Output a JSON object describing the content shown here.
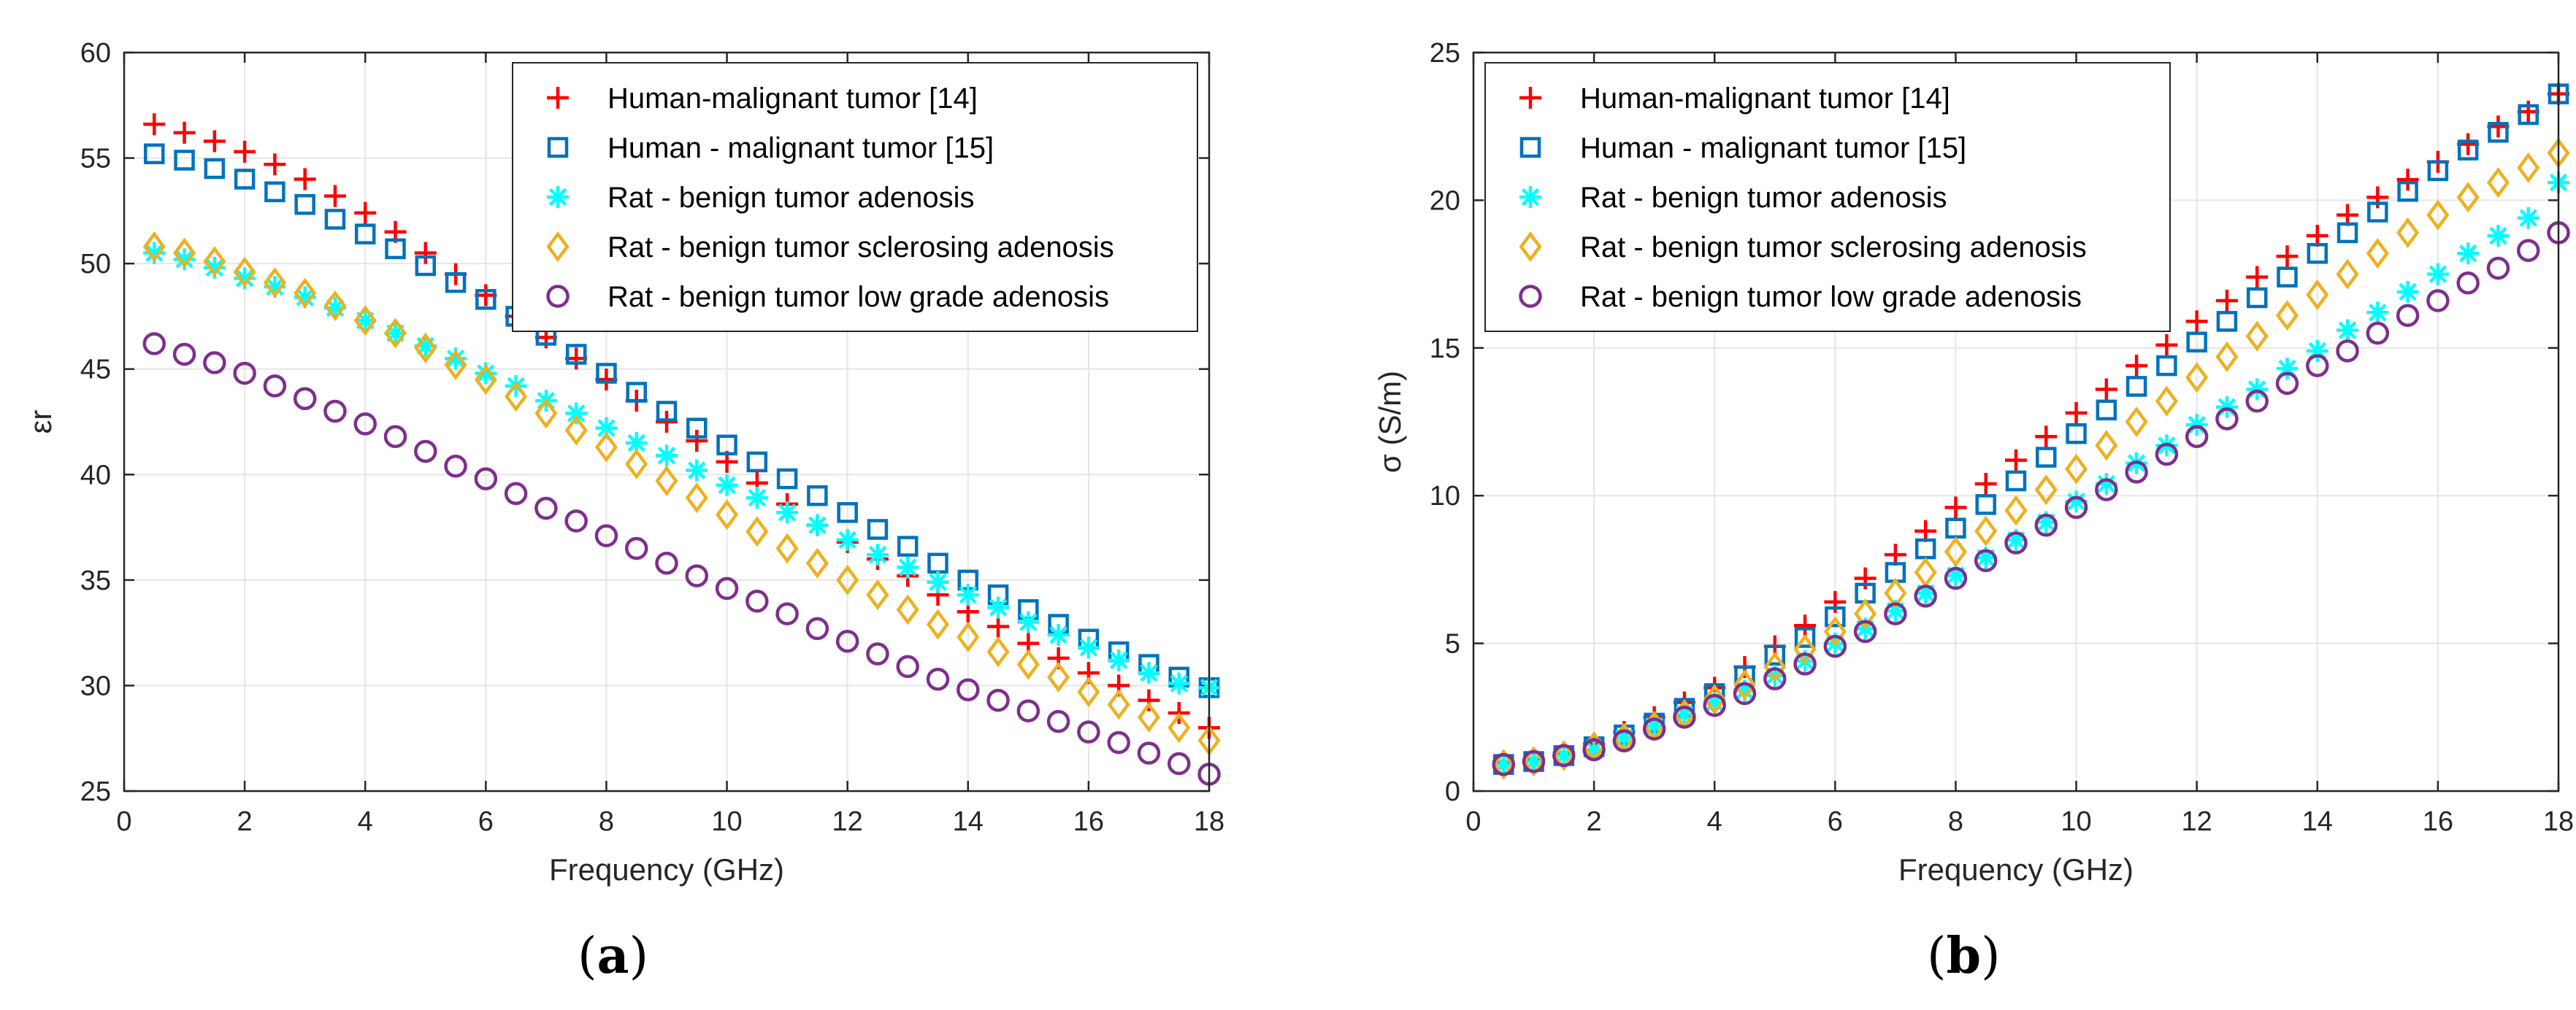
{
  "figure": {
    "panels": [
      {
        "id": "a",
        "caption_letter": "a"
      },
      {
        "id": "b",
        "caption_letter": "b"
      }
    ]
  },
  "colors": {
    "human14": "#ff0000",
    "human15": "#0072bd",
    "rat_adenosis": "#00ffff",
    "rat_sclerosing": "#edb120",
    "rat_lowgrade": "#7e2f8e"
  },
  "chart_data": [
    {
      "type": "scatter",
      "panel": "a",
      "xlabel": "Frequency (GHz)",
      "ylabel": "εr",
      "xlim": [
        0,
        18
      ],
      "ylim": [
        25,
        60
      ],
      "xticks": [
        0,
        2,
        4,
        6,
        8,
        10,
        12,
        14,
        16,
        18
      ],
      "yticks": [
        25,
        30,
        35,
        40,
        45,
        50,
        55,
        60
      ],
      "grid": true,
      "legend_position": "top-right",
      "x": [
        0.5,
        1,
        1.5,
        2,
        2.5,
        3,
        3.5,
        4,
        4.5,
        5,
        5.5,
        6,
        6.5,
        7,
        7.5,
        8,
        8.5,
        9,
        9.5,
        10,
        10.5,
        11,
        11.5,
        12,
        12.5,
        13,
        13.5,
        14,
        14.5,
        15,
        15.5,
        16,
        16.5,
        17,
        17.5,
        18
      ],
      "series": [
        {
          "name": "Human-malignant tumor [14]",
          "marker": "plus",
          "color_key": "human14",
          "values": [
            56.6,
            56.2,
            55.8,
            55.3,
            54.7,
            54.0,
            53.2,
            52.4,
            51.5,
            50.5,
            49.5,
            48.5,
            47.5,
            46.5,
            45.5,
            44.5,
            43.5,
            42.5,
            41.6,
            40.6,
            39.6,
            38.6,
            37.6,
            36.8,
            36.0,
            35.2,
            34.3,
            33.5,
            32.8,
            32.0,
            31.3,
            30.6,
            30.0,
            29.3,
            28.7,
            28.0
          ]
        },
        {
          "name": "Human - malignant tumor [15]",
          "marker": "square",
          "color_key": "human15",
          "values": [
            55.2,
            54.9,
            54.5,
            54.0,
            53.4,
            52.8,
            52.1,
            51.4,
            50.7,
            49.9,
            49.1,
            48.3,
            47.5,
            46.6,
            45.7,
            44.8,
            43.9,
            43.0,
            42.2,
            41.4,
            40.6,
            39.8,
            39.0,
            38.2,
            37.4,
            36.6,
            35.8,
            35.0,
            34.3,
            33.6,
            32.9,
            32.2,
            31.6,
            31.0,
            30.4,
            29.9
          ]
        },
        {
          "name": "Rat - benign tumor adenosis",
          "marker": "asterisk",
          "color_key": "rat_adenosis",
          "values": [
            50.5,
            50.2,
            49.8,
            49.3,
            48.9,
            48.4,
            47.9,
            47.3,
            46.7,
            46.1,
            45.5,
            44.8,
            44.2,
            43.5,
            42.9,
            42.2,
            41.5,
            40.9,
            40.2,
            39.5,
            38.9,
            38.2,
            37.6,
            36.9,
            36.2,
            35.6,
            34.9,
            34.3,
            33.7,
            33.0,
            32.4,
            31.8,
            31.2,
            30.6,
            30.1,
            29.9
          ]
        },
        {
          "name": "Rat - benign tumor sclerosing adenosis",
          "marker": "diamond",
          "color_key": "rat_sclerosing",
          "values": [
            50.8,
            50.5,
            50.1,
            49.6,
            49.1,
            48.6,
            48.0,
            47.3,
            46.7,
            46.0,
            45.2,
            44.5,
            43.7,
            42.9,
            42.1,
            41.3,
            40.5,
            39.7,
            38.9,
            38.1,
            37.3,
            36.5,
            35.8,
            35.0,
            34.3,
            33.6,
            32.9,
            32.3,
            31.6,
            31.0,
            30.4,
            29.7,
            29.1,
            28.5,
            28.0,
            27.4
          ]
        },
        {
          "name": "Rat - benign tumor low grade adenosis",
          "marker": "circle",
          "color_key": "rat_lowgrade",
          "values": [
            46.2,
            45.7,
            45.3,
            44.8,
            44.2,
            43.6,
            43.0,
            42.4,
            41.8,
            41.1,
            40.4,
            39.8,
            39.1,
            38.4,
            37.8,
            37.1,
            36.5,
            35.8,
            35.2,
            34.6,
            34.0,
            33.4,
            32.7,
            32.1,
            31.5,
            30.9,
            30.3,
            29.8,
            29.3,
            28.8,
            28.3,
            27.8,
            27.3,
            26.8,
            26.3,
            25.8
          ]
        }
      ]
    },
    {
      "type": "scatter",
      "panel": "b",
      "xlabel": "Frequency (GHz)",
      "ylabel": "σ (S/m)",
      "xlim": [
        0,
        18
      ],
      "ylim": [
        0,
        25
      ],
      "xticks": [
        0,
        2,
        4,
        6,
        8,
        10,
        12,
        14,
        16,
        18
      ],
      "yticks": [
        0,
        5,
        10,
        15,
        20,
        25
      ],
      "grid": true,
      "legend_position": "top-left",
      "x": [
        0.5,
        1,
        1.5,
        2,
        2.5,
        3,
        3.5,
        4,
        4.5,
        5,
        5.5,
        6,
        6.5,
        7,
        7.5,
        8,
        8.5,
        9,
        9.5,
        10,
        10.5,
        11,
        11.5,
        12,
        12.5,
        13,
        13.5,
        14,
        14.5,
        15,
        15.5,
        16,
        16.5,
        17,
        17.5,
        18
      ],
      "series": [
        {
          "name": "Human-malignant tumor [14]",
          "marker": "plus",
          "color_key": "human14",
          "values": [
            1.0,
            1.1,
            1.3,
            1.6,
            2.0,
            2.5,
            3.0,
            3.5,
            4.2,
            4.9,
            5.6,
            6.4,
            7.2,
            8.0,
            8.8,
            9.6,
            10.4,
            11.2,
            12.0,
            12.8,
            13.6,
            14.4,
            15.1,
            15.9,
            16.6,
            17.4,
            18.1,
            18.8,
            19.5,
            20.1,
            20.7,
            21.3,
            21.9,
            22.5,
            23.0,
            23.6
          ]
        },
        {
          "name": "Human - malignant tumor [15]",
          "marker": "square",
          "color_key": "human15",
          "values": [
            0.9,
            1.0,
            1.2,
            1.5,
            1.9,
            2.3,
            2.8,
            3.3,
            3.9,
            4.6,
            5.2,
            5.9,
            6.7,
            7.4,
            8.2,
            8.9,
            9.7,
            10.5,
            11.3,
            12.1,
            12.9,
            13.7,
            14.4,
            15.2,
            15.9,
            16.7,
            17.4,
            18.2,
            18.9,
            19.6,
            20.3,
            21.0,
            21.7,
            22.3,
            22.9,
            23.6
          ]
        },
        {
          "name": "Rat - benign tumor adenosis",
          "marker": "asterisk",
          "color_key": "rat_adenosis",
          "values": [
            0.9,
            1.0,
            1.2,
            1.4,
            1.8,
            2.2,
            2.6,
            3.0,
            3.4,
            3.9,
            4.4,
            5.0,
            5.5,
            6.1,
            6.7,
            7.3,
            7.9,
            8.5,
            9.1,
            9.8,
            10.4,
            11.1,
            11.7,
            12.4,
            13.0,
            13.6,
            14.3,
            14.9,
            15.6,
            16.2,
            16.9,
            17.5,
            18.2,
            18.8,
            19.4,
            20.6
          ]
        },
        {
          "name": "Rat - benign tumor sclerosing adenosis",
          "marker": "diamond",
          "color_key": "rat_sclerosing",
          "values": [
            0.9,
            1.0,
            1.2,
            1.5,
            1.8,
            2.2,
            2.6,
            3.1,
            3.6,
            4.2,
            4.8,
            5.4,
            6.0,
            6.7,
            7.4,
            8.1,
            8.8,
            9.5,
            10.2,
            10.9,
            11.7,
            12.5,
            13.2,
            14.0,
            14.7,
            15.4,
            16.1,
            16.8,
            17.5,
            18.2,
            18.9,
            19.5,
            20.1,
            20.6,
            21.1,
            21.6
          ]
        },
        {
          "name": "Rat - benign tumor low grade adenosis",
          "marker": "circle",
          "color_key": "rat_lowgrade",
          "values": [
            0.9,
            1.0,
            1.2,
            1.4,
            1.7,
            2.1,
            2.5,
            2.9,
            3.3,
            3.8,
            4.3,
            4.9,
            5.4,
            6.0,
            6.6,
            7.2,
            7.8,
            8.4,
            9.0,
            9.6,
            10.2,
            10.8,
            11.4,
            12.0,
            12.6,
            13.2,
            13.8,
            14.4,
            14.9,
            15.5,
            16.1,
            16.6,
            17.2,
            17.7,
            18.3,
            18.9
          ]
        }
      ]
    }
  ]
}
